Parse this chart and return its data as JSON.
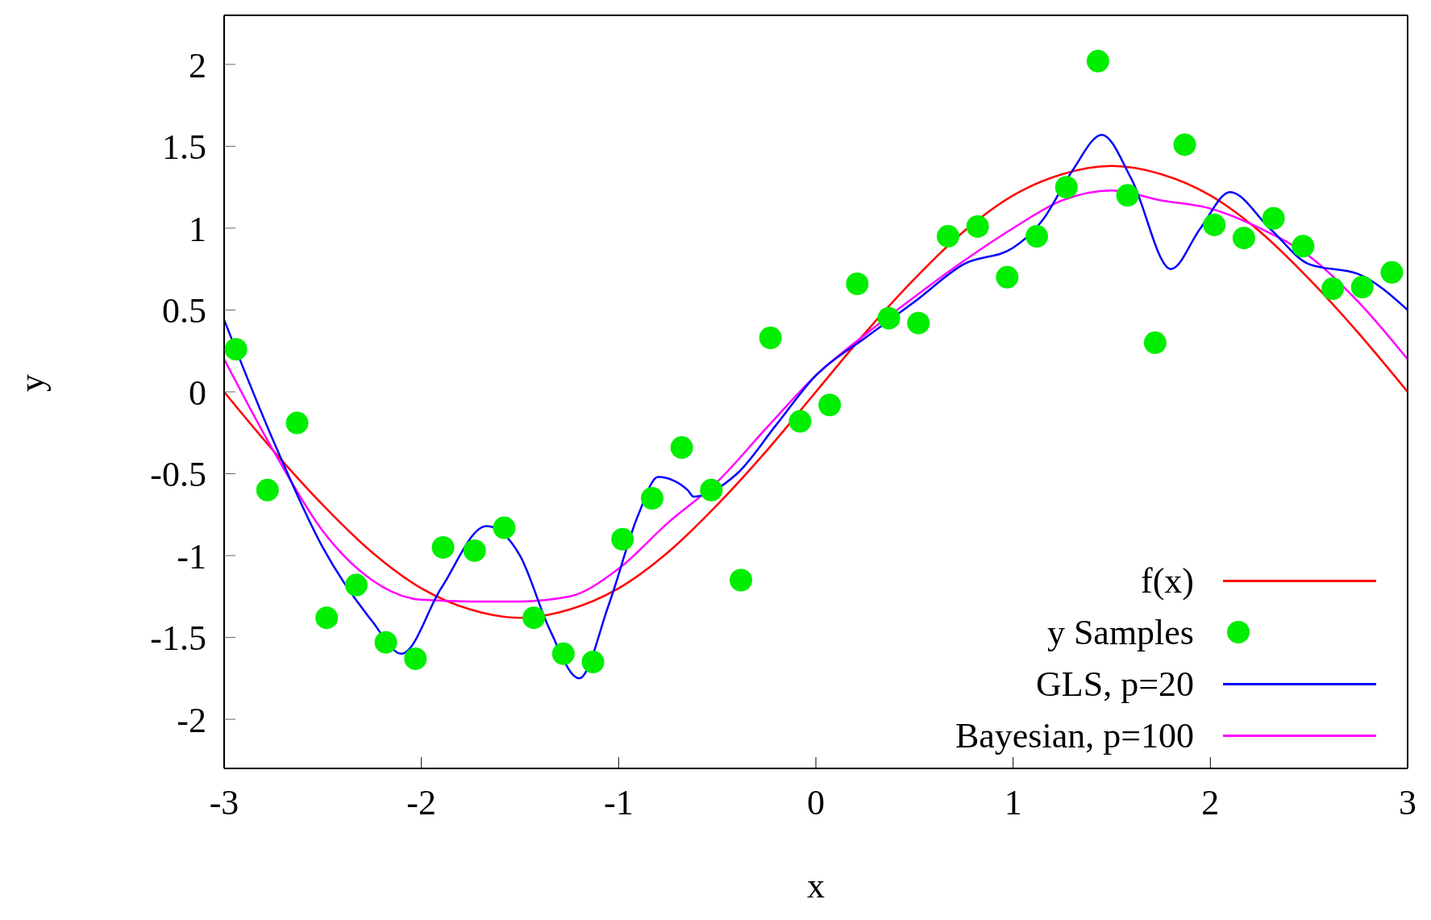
{
  "chart_data": {
    "type": "line",
    "xlabel": "x",
    "ylabel": "y",
    "xlim": [
      -3,
      3
    ],
    "ylim": [
      -2.3,
      2.3
    ],
    "xticks": [
      -3,
      -2,
      -1,
      0,
      1,
      2,
      3
    ],
    "yticks": [
      -2,
      -1.5,
      -1,
      -0.5,
      0,
      0.5,
      1,
      1.5,
      2
    ],
    "grid": false,
    "legend": "bottom right",
    "series": [
      {
        "name": "y Samples",
        "type": "scatter",
        "marker": "circle",
        "color": "#00ee00",
        "x": [
          -2.94,
          -2.78,
          -2.63,
          -2.48,
          -2.33,
          -2.18,
          -2.03,
          -1.89,
          -1.73,
          -1.58,
          -1.43,
          -1.28,
          -1.13,
          -0.98,
          -0.83,
          -0.68,
          -0.53,
          -0.38,
          -0.23,
          -0.08,
          0.07,
          0.21,
          0.37,
          0.52,
          0.67,
          0.82,
          0.97,
          1.12,
          1.27,
          1.43,
          1.58,
          1.72,
          1.87,
          2.02,
          2.17,
          2.32,
          2.47,
          2.62,
          2.77,
          2.92
        ],
        "values": [
          0.26,
          -0.6,
          -0.19,
          -1.38,
          -1.18,
          -1.53,
          -1.63,
          -0.95,
          -0.97,
          -0.83,
          -1.38,
          -1.6,
          -1.65,
          -0.9,
          -0.65,
          -0.34,
          -0.6,
          -1.15,
          0.33,
          -0.18,
          -0.08,
          0.66,
          0.45,
          0.42,
          0.95,
          1.01,
          0.7,
          0.95,
          1.25,
          2.02,
          1.2,
          0.3,
          1.51,
          1.02,
          0.94,
          1.06,
          0.89,
          0.63,
          0.64,
          0.73
        ]
      },
      {
        "name": "f(x)",
        "color": "#ff0000",
        "x": [
          -3,
          -2.75,
          -2.5,
          -2.25,
          -2,
          -1.75,
          -1.5,
          -1.25,
          -1,
          -0.75,
          -0.5,
          -0.25,
          0,
          0.25,
          0.5,
          0.75,
          1,
          1.25,
          1.5,
          1.75,
          2,
          2.25,
          2.5,
          2.75,
          3
        ],
        "values": [
          0,
          -0.36,
          -0.69,
          -0.98,
          -1.2,
          -1.33,
          -1.38,
          -1.33,
          -1.2,
          -0.98,
          -0.69,
          -0.36,
          0,
          0.36,
          0.69,
          0.98,
          1.2,
          1.33,
          1.38,
          1.33,
          1.2,
          0.98,
          0.69,
          0.36,
          0
        ]
      },
      {
        "name": "Bayesian, p=100",
        "type": "line",
        "color": "#ff00ff",
        "x": [
          -3,
          -2.75,
          -2.5,
          -2.25,
          -2,
          -1.75,
          -1.5,
          -1.25,
          -1,
          -0.75,
          -0.5,
          -0.25,
          0,
          0.25,
          0.5,
          0.75,
          1,
          1.25,
          1.5,
          1.75,
          2,
          2.25,
          2.5,
          2.75,
          3
        ],
        "values": [
          0.2,
          -0.36,
          -0.85,
          -1.15,
          -1.27,
          -1.28,
          -1.28,
          -1.25,
          -1.08,
          -0.8,
          -0.55,
          -0.22,
          0.1,
          0.35,
          0.58,
          0.8,
          1,
          1.17,
          1.23,
          1.17,
          1.12,
          1,
          0.83,
          0.55,
          0.2
        ]
      },
      {
        "name": "GLS, p=20",
        "type": "line",
        "color": "#0000ff",
        "x": [
          -3,
          -2.75,
          -2.5,
          -2.25,
          -2.1,
          -1.9,
          -1.67,
          -1.5,
          -1.35,
          -1.2,
          -1.05,
          -0.9,
          -0.8,
          -0.65,
          -0.62,
          -0.4,
          -0.2,
          0,
          0.25,
          0.5,
          0.75,
          1,
          1.15,
          1.3,
          1.45,
          1.6,
          1.8,
          1.95,
          2.1,
          2.3,
          2.5,
          2.75,
          3
        ],
        "values": [
          0.44,
          -0.3,
          -0.95,
          -1.4,
          -1.6,
          -1.2,
          -0.82,
          -1,
          -1.45,
          -1.75,
          -1.3,
          -0.75,
          -0.52,
          -0.6,
          -0.64,
          -0.5,
          -0.2,
          0.1,
          0.33,
          0.55,
          0.78,
          0.88,
          1.05,
          1.35,
          1.57,
          1.3,
          0.75,
          1,
          1.22,
          1,
          0.78,
          0.72,
          0.5
        ]
      }
    ]
  }
}
